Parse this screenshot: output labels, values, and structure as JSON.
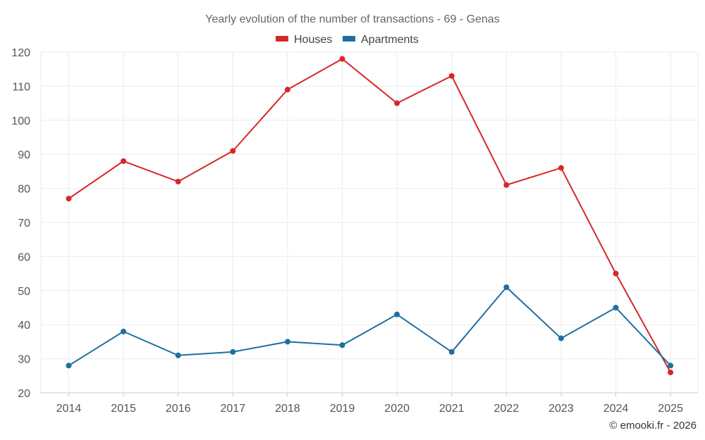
{
  "chart_data": {
    "type": "line",
    "title": "Yearly evolution of the number of transactions - 69 - Genas",
    "categories": [
      "2014",
      "2015",
      "2016",
      "2017",
      "2018",
      "2019",
      "2020",
      "2021",
      "2022",
      "2023",
      "2024",
      "2025"
    ],
    "series": [
      {
        "name": "Houses",
        "color": "#d62728",
        "values": [
          77,
          88,
          82,
          91,
          109,
          118,
          105,
          113,
          81,
          86,
          55,
          26
        ]
      },
      {
        "name": "Apartments",
        "color": "#1f6f9f",
        "values": [
          28,
          38,
          31,
          32,
          35,
          34,
          43,
          32,
          51,
          36,
          45,
          28
        ]
      }
    ],
    "ylim": [
      20,
      120
    ],
    "yticks": [
      20,
      30,
      40,
      50,
      60,
      70,
      80,
      90,
      100,
      110,
      120
    ],
    "xlabel": "",
    "ylabel": "",
    "grid": true,
    "legend_position": "top-center"
  },
  "credit": "© emooki.fr - 2026"
}
